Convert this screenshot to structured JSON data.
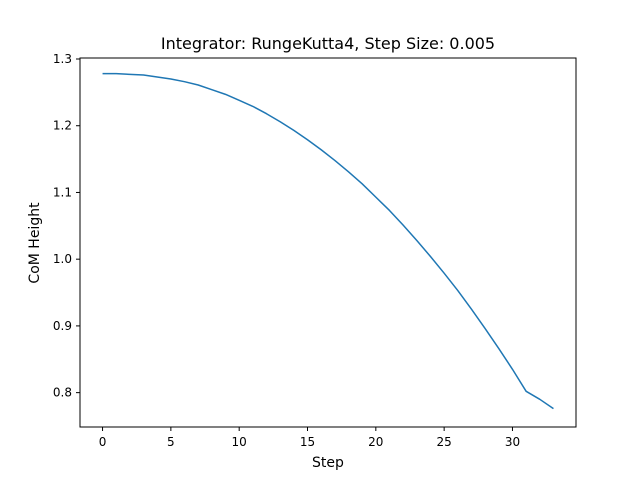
{
  "chart_data": {
    "type": "line",
    "title": "Integrator: RungeKutta4, Step Size: 0.005",
    "xlabel": "Step",
    "ylabel": "CoM Height",
    "xlim": [
      -1.65,
      34.65
    ],
    "ylim": [
      0.7485,
      1.3015
    ],
    "xticks": [
      0,
      5,
      10,
      15,
      20,
      25,
      30
    ],
    "xtick_labels": [
      "0",
      "5",
      "10",
      "15",
      "20",
      "25",
      "30"
    ],
    "yticks": [
      0.8,
      0.9,
      1.0,
      1.1,
      1.2,
      1.3
    ],
    "ytick_labels": [
      "0.8",
      "0.9",
      "1.0",
      "1.1",
      "1.2",
      "1.3"
    ],
    "grid": false,
    "series": [
      {
        "color": "#1f77b4",
        "x": [
          0,
          1,
          2,
          3,
          4,
          5,
          6,
          7,
          8,
          9,
          10,
          11,
          12,
          13,
          14,
          15,
          16,
          17,
          18,
          19,
          20,
          21,
          22,
          23,
          24,
          25,
          26,
          27,
          28,
          29,
          30,
          31,
          32,
          33
        ],
        "y": [
          1.278,
          1.278,
          1.277,
          1.276,
          1.273,
          1.27,
          1.266,
          1.261,
          1.254,
          1.247,
          1.238,
          1.229,
          1.218,
          1.206,
          1.193,
          1.179,
          1.164,
          1.148,
          1.131,
          1.113,
          1.093,
          1.073,
          1.051,
          1.028,
          1.004,
          0.979,
          0.953,
          0.925,
          0.896,
          0.866,
          0.835,
          0.802,
          0.79,
          0.776
        ]
      }
    ]
  }
}
